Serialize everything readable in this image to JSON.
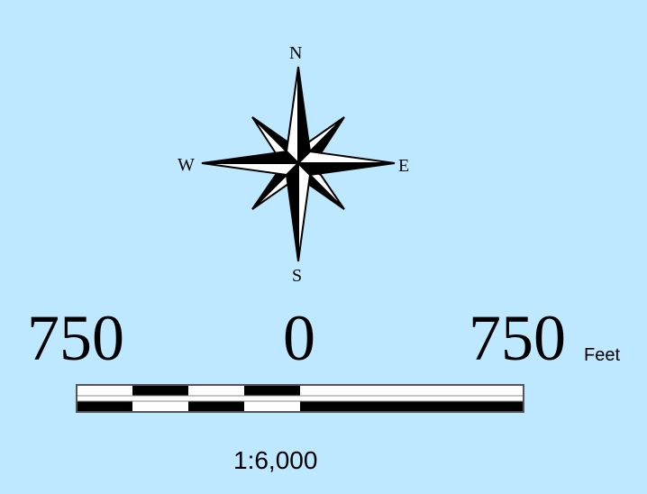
{
  "map": {
    "background": "#bee8ff",
    "compass": {
      "north": "N",
      "south": "S",
      "east": "E",
      "west": "W"
    },
    "scale_bar": {
      "left_label": "750",
      "middle_label": "0",
      "right_label": "750",
      "unit": "Feet",
      "ratio": "1:6,000"
    }
  }
}
